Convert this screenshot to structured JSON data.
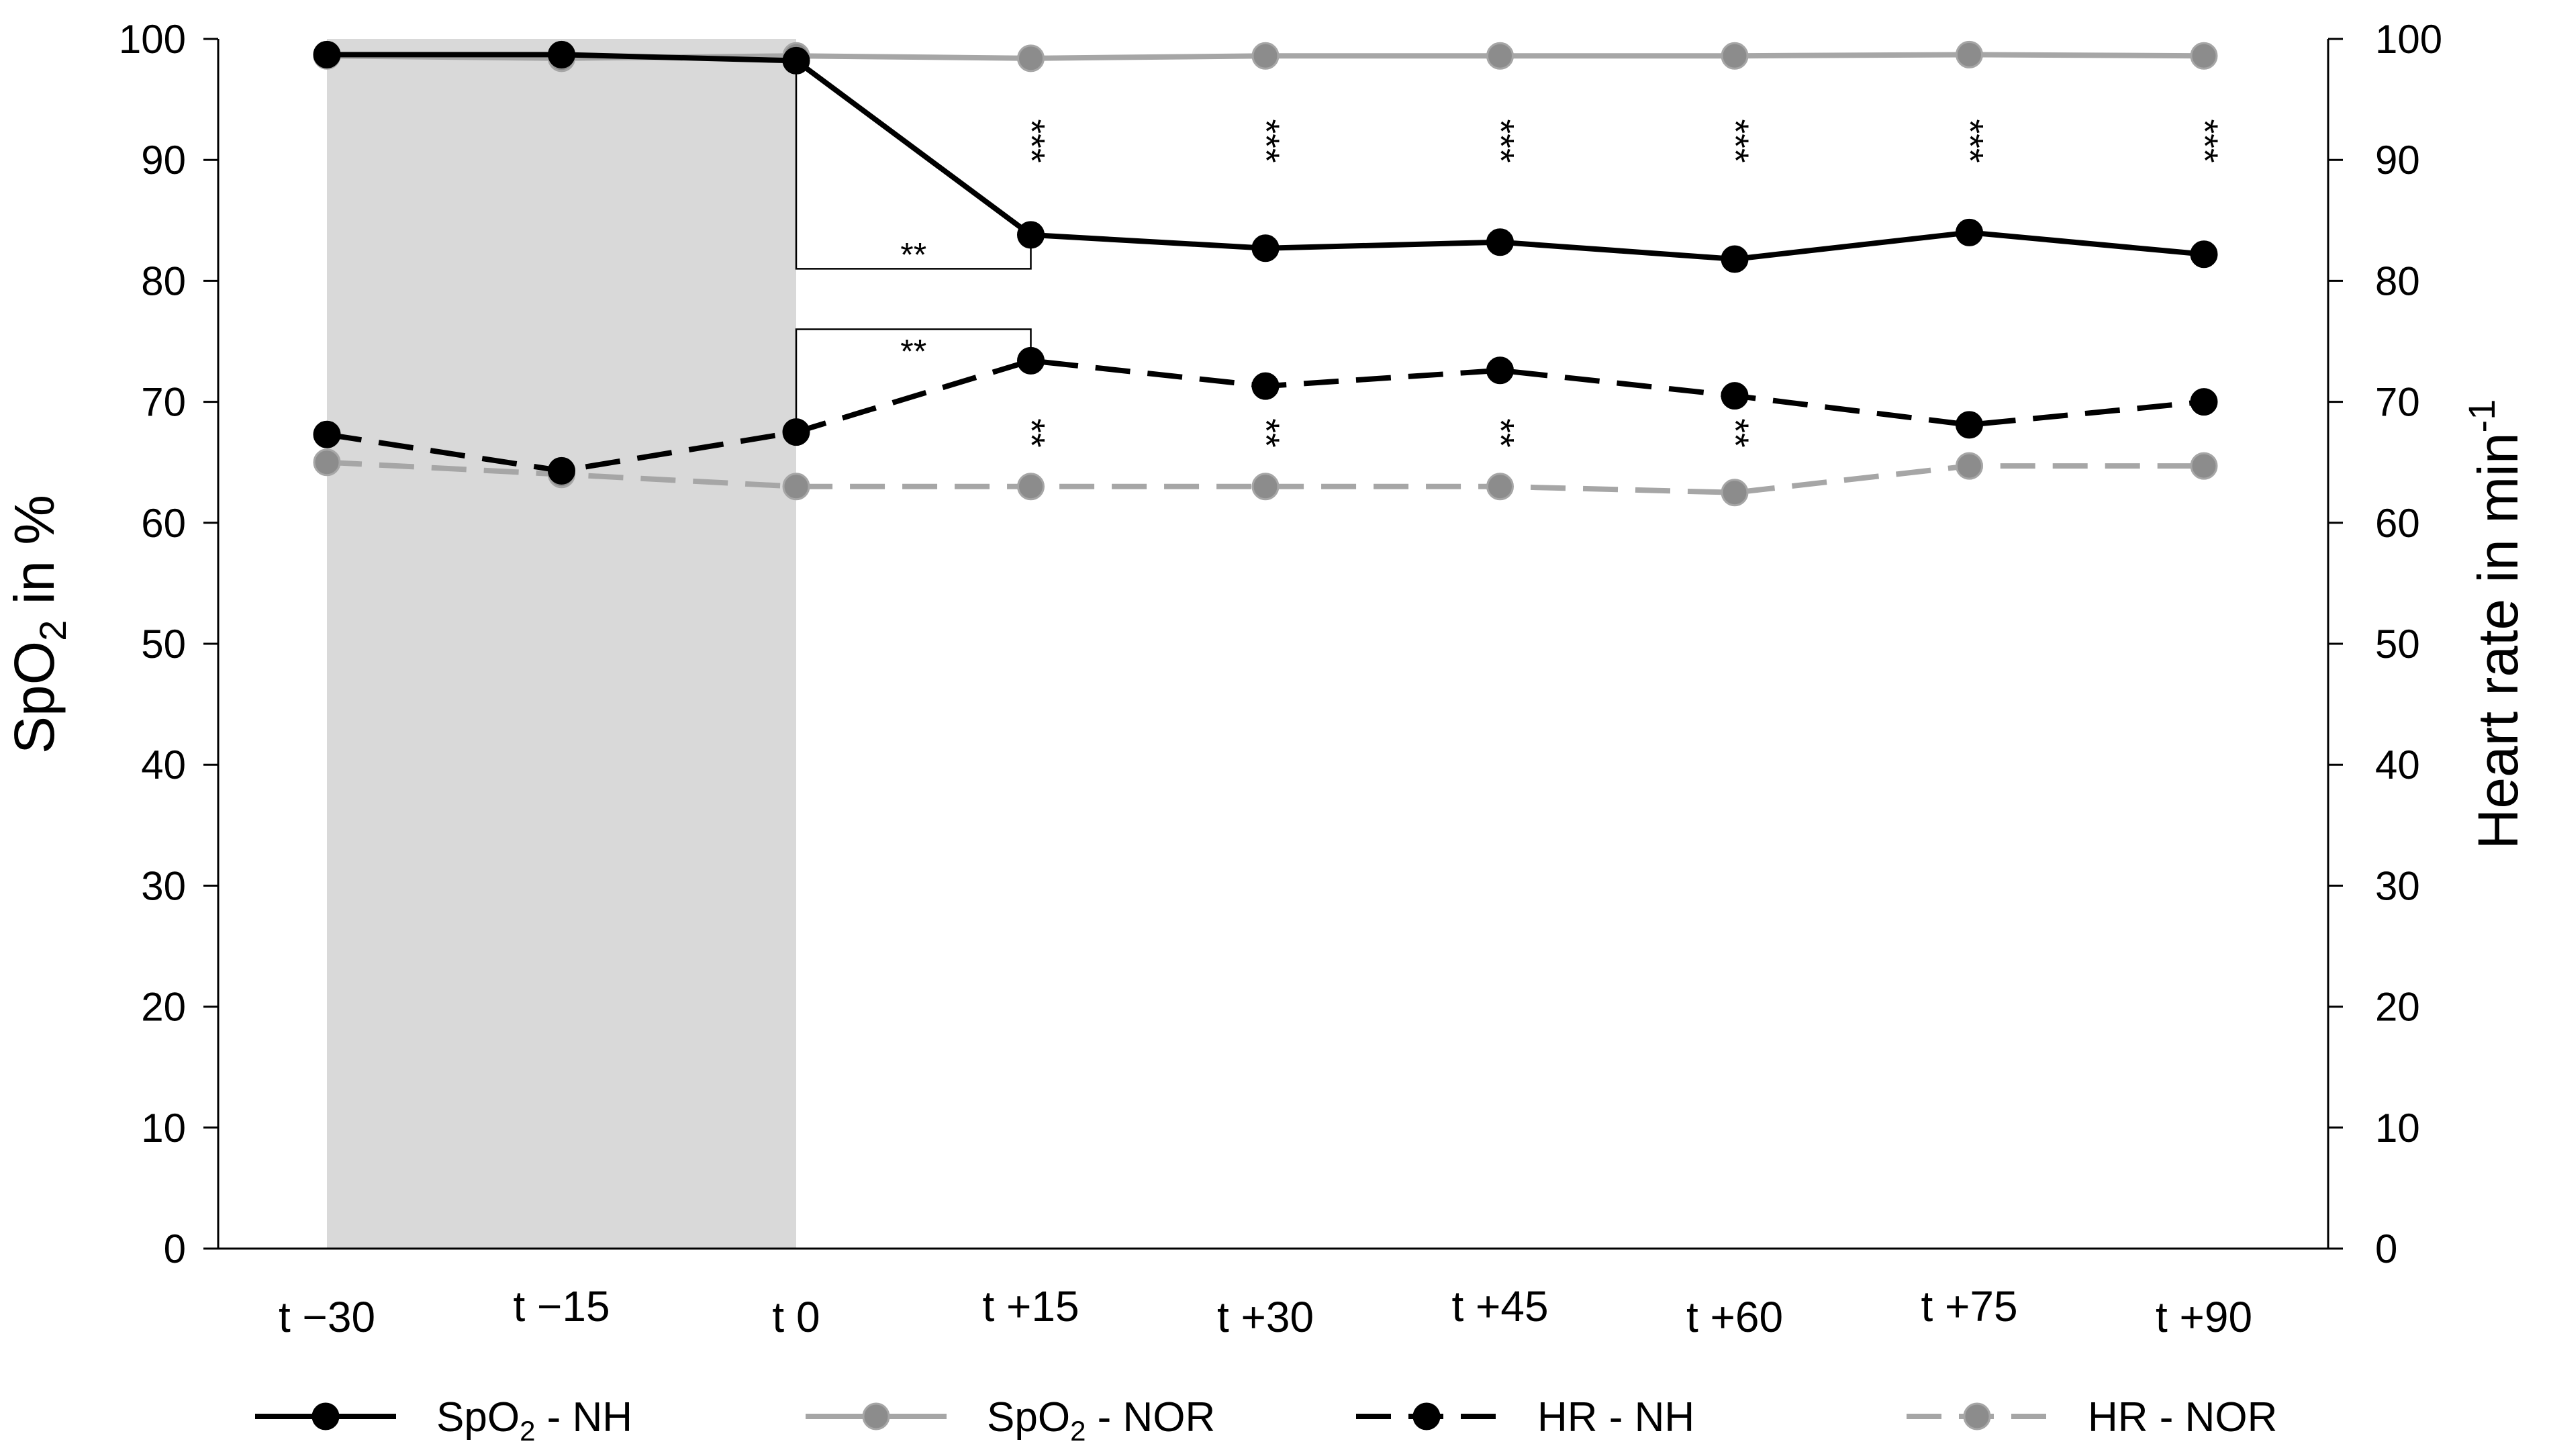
{
  "chart_data": {
    "type": "line",
    "categories": [
      "t −30",
      "t −15",
      "t 0",
      "t +15",
      "t +30",
      "t +45",
      "t +60",
      "t +75",
      "t +90"
    ],
    "y_left": {
      "label_main": "SpO",
      "label_sub": "2",
      "label_rest": " in %",
      "range": [
        0,
        100
      ],
      "ticks": [
        "0",
        "10",
        "20",
        "30",
        "40",
        "50",
        "60",
        "70",
        "80",
        "90",
        "100"
      ]
    },
    "y_right": {
      "label_main": "Heart rate in min",
      "label_sup": "-1",
      "range": [
        0,
        100
      ],
      "ticks": [
        "0",
        "10",
        "20",
        "30",
        "40",
        "50",
        "60",
        "70",
        "80",
        "90",
        "100"
      ]
    },
    "shaded_region": {
      "from_category": "t −30",
      "to_category": "t 0",
      "color": "#d9d9d9"
    },
    "series": [
      {
        "key": "spo2_nh",
        "legend_main": "SpO",
        "legend_sub": "2",
        "legend_rest": " - NH",
        "axis": "left",
        "color": "#000000",
        "dashed": false,
        "marker_fill": "#000000",
        "values": [
          98.7,
          98.7,
          98.2,
          83.8,
          82.7,
          83.2,
          81.8,
          84.0,
          82.2
        ]
      },
      {
        "key": "spo2_nor",
        "legend_main": "SpO",
        "legend_sub": "2",
        "legend_rest": " - NOR",
        "axis": "left",
        "color": "#a6a6a6",
        "dashed": false,
        "marker_fill": "#8c8c8c",
        "values": [
          98.6,
          98.4,
          98.6,
          98.4,
          98.6,
          98.6,
          98.6,
          98.7,
          98.6
        ]
      },
      {
        "key": "hr_nh",
        "legend_main": "HR - NH",
        "legend_sub": "",
        "legend_rest": "",
        "axis": "right",
        "color": "#000000",
        "dashed": true,
        "marker_fill": "#000000",
        "values": [
          67.3,
          64.3,
          67.5,
          73.4,
          71.3,
          72.6,
          70.5,
          68.1,
          70.0
        ]
      },
      {
        "key": "hr_nor",
        "legend_main": "HR - NOR",
        "legend_sub": "",
        "legend_rest": "",
        "axis": "right",
        "color": "#a6a6a6",
        "dashed": true,
        "marker_fill": "#8c8c8c",
        "values": [
          65.0,
          64.0,
          63.0,
          63.0,
          63.0,
          63.0,
          62.5,
          64.7,
          64.7
        ]
      }
    ],
    "significance": {
      "spo2_markers": {
        "text": "***",
        "categories": [
          "t +15",
          "t +30",
          "t +45",
          "t +60",
          "t +75",
          "t +90"
        ]
      },
      "hr_markers": {
        "text": "**",
        "categories": [
          "t +15",
          "t +30",
          "t +45",
          "t +60"
        ]
      },
      "brackets": [
        {
          "text": "**",
          "from_category": "t 0",
          "to_category": "t +15",
          "y_top": 98.2,
          "y_bottom": 81
        },
        {
          "text": "**",
          "from_category": "t 0",
          "to_category": "t +15",
          "y_top": 76,
          "y_bottom": 67.5
        }
      ]
    },
    "grid": false,
    "legend_position": "bottom"
  }
}
